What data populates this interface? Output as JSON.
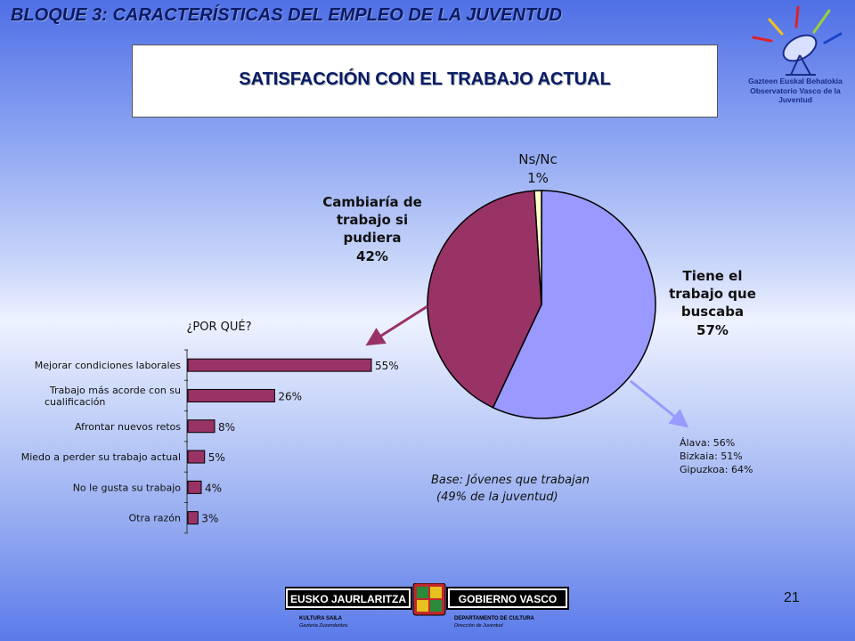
{
  "header": {
    "title": "BLOQUE 3: CARACTERÍSTICAS DEL EMPLEO DE LA JUVENTUD"
  },
  "logo": {
    "line1": "Gazteen Euskal Behatokia",
    "line2": "Observatorio Vasco de la Juventud"
  },
  "chart_data": [
    {
      "type": "pie",
      "title": "SATISFACCIÓN CON EL TRABAJO ACTUAL",
      "slices": [
        {
          "label_lines": [
            "Tiene el",
            "trabajo que",
            "buscaba"
          ],
          "value": 57,
          "value_label": "57%",
          "color": "#9999ff"
        },
        {
          "label_lines": [
            "Cambiaría de",
            "trabajo si",
            "pudiera"
          ],
          "value": 42,
          "value_label": "42%",
          "color": "#993366"
        },
        {
          "label_lines": [
            "Ns/Nc"
          ],
          "value": 1,
          "value_label": "1%",
          "color": "#ffffcc"
        }
      ],
      "provinces": [
        {
          "name": "Álava:",
          "value": "56%"
        },
        {
          "name": "Bizkaia:",
          "value": "51%"
        },
        {
          "name": "Gipuzkoa:",
          "value": "64%"
        }
      ],
      "base_line1": "Base: Jóvenes que trabajan",
      "base_line2": "(49% de la juventud)"
    },
    {
      "type": "bar",
      "orientation": "horizontal",
      "title": "¿POR QUÉ?",
      "color": "#993366",
      "xlim": [
        0,
        55
      ],
      "categories": [
        [
          "Mejorar condiciones laborales"
        ],
        [
          "Trabajo más acorde con su",
          "cualificación"
        ],
        [
          "Afrontar nuevos retos"
        ],
        [
          "Miedo a perder su trabajo actual"
        ],
        [
          "No le gusta su trabajo"
        ],
        [
          "Otra razón"
        ]
      ],
      "values": [
        55,
        26,
        8,
        5,
        4,
        3
      ],
      "value_labels": [
        "55%",
        "26%",
        "8%",
        "5%",
        "4%",
        "3%"
      ]
    }
  ],
  "footer": {
    "left_banner": "EUSKO JAURLARITZA",
    "right_banner": "GOBIERNO VASCO",
    "left_sub1": "KULTURA SAILA",
    "left_sub2": "Gazteria Zuzendaritza",
    "right_sub1": "DEPARTAMENTO DE CULTURA",
    "right_sub2": "Dirección de Juventud",
    "page_number": "21"
  }
}
